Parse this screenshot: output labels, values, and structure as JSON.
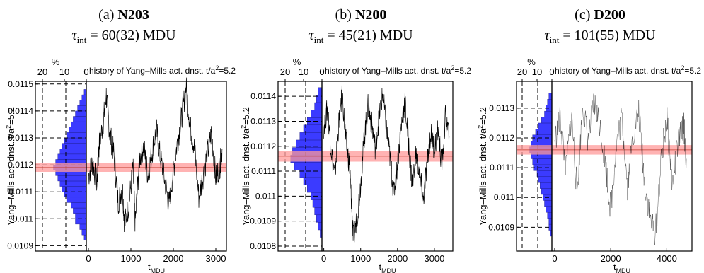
{
  "chart_data": [
    {
      "type": "histogram+line",
      "caption": "(a)",
      "ensemble": "N203",
      "tau_label": "τ",
      "tau_sub": "int",
      "tau_value": "= 60(32) MDU",
      "title": "history of Yang–Mills act. dnst. t/a",
      "title_sup": "2",
      "title_tail": "=5.2",
      "ylabel": "Yang–Mills act. dnst. t/a",
      "ylabel_sup": "2",
      "ylabel_tail": "=5.2",
      "xlabel": "t",
      "xlabel_sub": "MDU",
      "hist_label": "%",
      "hist_ticks": [
        20,
        10,
        0
      ],
      "ylim": [
        0.01088,
        0.01151
      ],
      "yticks": [
        0.0109,
        0.011,
        0.0111,
        0.0112,
        0.0113,
        0.0114,
        0.0115
      ],
      "ytick_labels": [
        "0.0109",
        "0.011",
        "0.0111",
        "0.0112",
        "0.0113",
        "0.0114",
        "0.0115"
      ],
      "xlim": [
        -50,
        3250
      ],
      "xticks": [
        0,
        1000,
        2000,
        3000
      ],
      "xtick_labels": [
        "0",
        "1000",
        "2000",
        "3000"
      ],
      "mean": 0.01119,
      "err": 1e-05,
      "histogram": [
        [
          0.01093,
          1
        ],
        [
          0.01095,
          2
        ],
        [
          0.01097,
          3
        ],
        [
          0.01099,
          5
        ],
        [
          0.01101,
          5
        ],
        [
          0.01103,
          6
        ],
        [
          0.01105,
          7
        ],
        [
          0.01107,
          9
        ],
        [
          0.01109,
          10
        ],
        [
          0.01111,
          11
        ],
        [
          0.01113,
          12
        ],
        [
          0.01115,
          13
        ],
        [
          0.01117,
          14
        ],
        [
          0.01119,
          15
        ],
        [
          0.01121,
          14
        ],
        [
          0.01123,
          13
        ],
        [
          0.01125,
          12
        ],
        [
          0.01127,
          11
        ],
        [
          0.01129,
          10
        ],
        [
          0.01131,
          9
        ],
        [
          0.01133,
          8
        ],
        [
          0.01135,
          7
        ],
        [
          0.01137,
          6
        ],
        [
          0.01139,
          5
        ],
        [
          0.01141,
          4
        ],
        [
          0.01143,
          3
        ],
        [
          0.01145,
          2
        ],
        [
          0.01147,
          1
        ]
      ],
      "history": [
        [
          0,
          0.01116
        ],
        [
          100,
          0.01121
        ],
        [
          200,
          0.01113
        ],
        [
          250,
          0.01127
        ],
        [
          350,
          0.01136
        ],
        [
          420,
          0.01146
        ],
        [
          500,
          0.01132
        ],
        [
          600,
          0.01124
        ],
        [
          700,
          0.01106
        ],
        [
          800,
          0.01112
        ],
        [
          850,
          0.01098
        ],
        [
          950,
          0.01105
        ],
        [
          1050,
          0.01119
        ],
        [
          1100,
          0.01098
        ],
        [
          1200,
          0.01122
        ],
        [
          1300,
          0.01127
        ],
        [
          1400,
          0.01116
        ],
        [
          1500,
          0.01125
        ],
        [
          1600,
          0.01133
        ],
        [
          1700,
          0.01122
        ],
        [
          1800,
          0.01114
        ],
        [
          1900,
          0.01105
        ],
        [
          2000,
          0.01118
        ],
        [
          2100,
          0.01129
        ],
        [
          2200,
          0.01138
        ],
        [
          2300,
          0.01149
        ],
        [
          2400,
          0.01134
        ],
        [
          2500,
          0.01126
        ],
        [
          2600,
          0.01108
        ],
        [
          2700,
          0.01116
        ],
        [
          2800,
          0.01124
        ],
        [
          2900,
          0.01132
        ],
        [
          3000,
          0.01115
        ],
        [
          3100,
          0.0112
        ],
        [
          3150,
          0.01126
        ]
      ]
    },
    {
      "type": "histogram+line",
      "caption": "(b)",
      "ensemble": "N200",
      "tau_label": "τ",
      "tau_sub": "int",
      "tau_value": "= 45(21) MDU",
      "title": "history of Yang–Mills act. dnst. t/a",
      "title_sup": "2",
      "title_tail": "=5.2",
      "ylabel": "Yang–Mills act. dnst. t/a",
      "ylabel_sup": "2",
      "ylabel_tail": "=5.2",
      "xlabel": "t",
      "xlabel_sub": "MDU",
      "hist_label": "%",
      "hist_ticks": [
        20,
        10,
        0
      ],
      "ylim": [
        0.01078,
        0.01146
      ],
      "yticks": [
        0.0108,
        0.0109,
        0.011,
        0.0111,
        0.0112,
        0.0113,
        0.0114
      ],
      "ytick_labels": [
        "0.0108",
        "0.0109",
        "0.011",
        "0.0111",
        "0.0112",
        "0.0113",
        "0.0114"
      ],
      "xlim": [
        -50,
        3500
      ],
      "xticks": [
        0,
        1000,
        2000,
        3000
      ],
      "xtick_labels": [
        "0",
        "1000",
        "2000",
        "3000"
      ],
      "mean": 0.01116,
      "err": 1.35e-05,
      "histogram": [
        [
          0.01085,
          1
        ],
        [
          0.01088,
          2
        ],
        [
          0.01091,
          3
        ],
        [
          0.01094,
          4
        ],
        [
          0.01097,
          5
        ],
        [
          0.011,
          6
        ],
        [
          0.01103,
          8
        ],
        [
          0.01106,
          10
        ],
        [
          0.01109,
          12
        ],
        [
          0.01112,
          15
        ],
        [
          0.01115,
          17
        ],
        [
          0.01118,
          16
        ],
        [
          0.01121,
          14
        ],
        [
          0.01124,
          12
        ],
        [
          0.01127,
          10
        ],
        [
          0.0113,
          8
        ],
        [
          0.01133,
          6
        ],
        [
          0.01136,
          4
        ],
        [
          0.01139,
          3
        ],
        [
          0.01142,
          2
        ]
      ],
      "history": [
        [
          0,
          0.01128
        ],
        [
          100,
          0.01135
        ],
        [
          200,
          0.01119
        ],
        [
          300,
          0.01108
        ],
        [
          400,
          0.01128
        ],
        [
          500,
          0.01141
        ],
        [
          600,
          0.01122
        ],
        [
          700,
          0.01112
        ],
        [
          750,
          0.01098
        ],
        [
          800,
          0.01083
        ],
        [
          900,
          0.01091
        ],
        [
          1000,
          0.01105
        ],
        [
          1100,
          0.01124
        ],
        [
          1200,
          0.01136
        ],
        [
          1300,
          0.01129
        ],
        [
          1400,
          0.01119
        ],
        [
          1500,
          0.01132
        ],
        [
          1600,
          0.01141
        ],
        [
          1700,
          0.01127
        ],
        [
          1800,
          0.01115
        ],
        [
          1900,
          0.01101
        ],
        [
          2000,
          0.01113
        ],
        [
          2100,
          0.01128
        ],
        [
          2200,
          0.01138
        ],
        [
          2300,
          0.01121
        ],
        [
          2400,
          0.01104
        ],
        [
          2500,
          0.01117
        ],
        [
          2600,
          0.01109
        ],
        [
          2700,
          0.01098
        ],
        [
          2800,
          0.01113
        ],
        [
          2900,
          0.01125
        ],
        [
          3000,
          0.01119
        ],
        [
          3100,
          0.01127
        ],
        [
          3200,
          0.01112
        ],
        [
          3300,
          0.01132
        ],
        [
          3400,
          0.01124
        ]
      ]
    },
    {
      "type": "histogram+line",
      "caption": "(c)",
      "ensemble": "D200",
      "tau_label": "τ",
      "tau_sub": "int",
      "tau_value": "= 101(55) MDU",
      "title": "history of Yang–Mills act. dnst. t/a",
      "title_sup": "2",
      "title_tail": "=5.2",
      "ylabel": "Yang–Mills act. dnst. t/a",
      "ylabel_sup": "2",
      "ylabel_tail": "=5.2",
      "xlabel": "t",
      "xlabel_sub": "MDU",
      "hist_label": "%",
      "hist_ticks": [
        20,
        10,
        0
      ],
      "ylim": [
        0.01082,
        0.01139
      ],
      "yticks": [
        0.0109,
        0.011,
        0.0111,
        0.0112,
        0.0113
      ],
      "ytick_labels": [
        "0.0109",
        "0.011",
        "0.0111",
        "0.0112",
        "0.0113"
      ],
      "xlim": [
        -100,
        4900
      ],
      "xticks": [
        0,
        2000,
        4000
      ],
      "xtick_labels": [
        "0",
        "2000",
        "4000"
      ],
      "mean": 0.01116,
      "err": 1e-05,
      "histogram": [
        [
          0.01088,
          1
        ],
        [
          0.0109,
          2
        ],
        [
          0.01092,
          2
        ],
        [
          0.01094,
          3
        ],
        [
          0.01096,
          4
        ],
        [
          0.01098,
          5
        ],
        [
          0.011,
          6
        ],
        [
          0.01102,
          7
        ],
        [
          0.01104,
          8
        ],
        [
          0.01106,
          9
        ],
        [
          0.01108,
          10
        ],
        [
          0.0111,
          12
        ],
        [
          0.01112,
          13
        ],
        [
          0.01114,
          14
        ],
        [
          0.01116,
          15
        ],
        [
          0.01118,
          14
        ],
        [
          0.0112,
          13
        ],
        [
          0.01122,
          11
        ],
        [
          0.01124,
          9
        ],
        [
          0.01126,
          7
        ],
        [
          0.01128,
          5
        ],
        [
          0.0113,
          4
        ],
        [
          0.01132,
          3
        ],
        [
          0.01134,
          2
        ]
      ],
      "history": [
        [
          0,
          0.01119
        ],
        [
          200,
          0.01127
        ],
        [
          400,
          0.01109
        ],
        [
          600,
          0.01128
        ],
        [
          800,
          0.01102
        ],
        [
          1000,
          0.01131
        ],
        [
          1200,
          0.01119
        ],
        [
          1400,
          0.01132
        ],
        [
          1600,
          0.01125
        ],
        [
          1800,
          0.01112
        ],
        [
          2000,
          0.01096
        ],
        [
          2200,
          0.01118
        ],
        [
          2400,
          0.01127
        ],
        [
          2600,
          0.01104
        ],
        [
          2800,
          0.01121
        ],
        [
          3000,
          0.01129
        ],
        [
          3200,
          0.01106
        ],
        [
          3400,
          0.01094
        ],
        [
          3600,
          0.01088
        ],
        [
          3800,
          0.01112
        ],
        [
          4000,
          0.01127
        ],
        [
          4200,
          0.01104
        ],
        [
          4400,
          0.01118
        ],
        [
          4600,
          0.01125
        ],
        [
          4700,
          0.01113
        ]
      ]
    }
  ],
  "colors": {
    "histogram_fill": "#3b3bff",
    "band_fill": "#ff9a9a",
    "mean_line": "#c0392b",
    "history_line": "#000000"
  }
}
